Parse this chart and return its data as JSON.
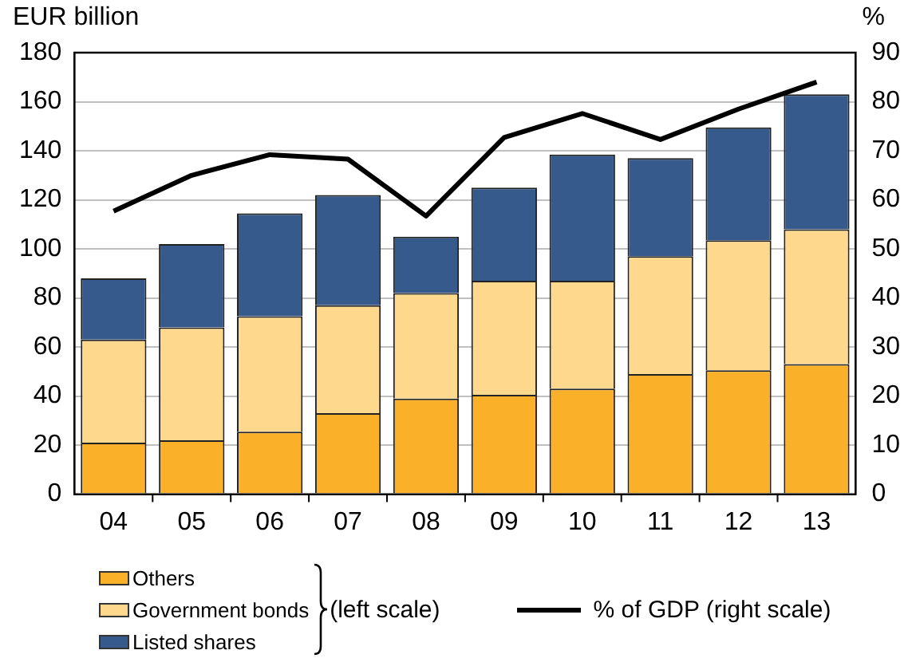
{
  "chart_data": {
    "type": "bar",
    "stacked": true,
    "ylabel": "EUR billion",
    "y2label": "%",
    "categories": [
      "04",
      "05",
      "06",
      "07",
      "08",
      "09",
      "10",
      "11",
      "12",
      "13"
    ],
    "series": [
      {
        "name": "Others",
        "color": "#fbb02a",
        "values": [
          21,
          22,
          25.5,
          33,
          39,
          40.5,
          43,
          49,
          50.5,
          53
        ]
      },
      {
        "name": "Government bonds",
        "color": "#fdd88d",
        "values": [
          42,
          46,
          47,
          44,
          43,
          46.5,
          44,
          48,
          53,
          55
        ]
      },
      {
        "name": "Listed shares",
        "color": "#365a8c",
        "values": [
          25,
          34,
          42,
          45,
          23,
          38,
          51.5,
          40,
          46,
          55
        ]
      },
      {
        "name": "% of GDP (right scale)",
        "type": "line",
        "axis": "y2",
        "color": "#000000",
        "values": [
          57.7,
          65,
          69.2,
          68.3,
          56.7,
          72.7,
          77.6,
          72.3,
          78.5,
          84
        ]
      }
    ],
    "ylim": [
      0,
      180
    ],
    "yticks": [
      0,
      20,
      40,
      60,
      80,
      100,
      120,
      140,
      160,
      180
    ],
    "y2lim": [
      0,
      90
    ],
    "y2ticks": [
      0,
      10,
      20,
      30,
      40,
      50,
      60,
      70,
      80,
      90
    ],
    "grid": "y",
    "legend": "bottom",
    "marker": "none",
    "annotations": [
      "(left scale)"
    ]
  }
}
